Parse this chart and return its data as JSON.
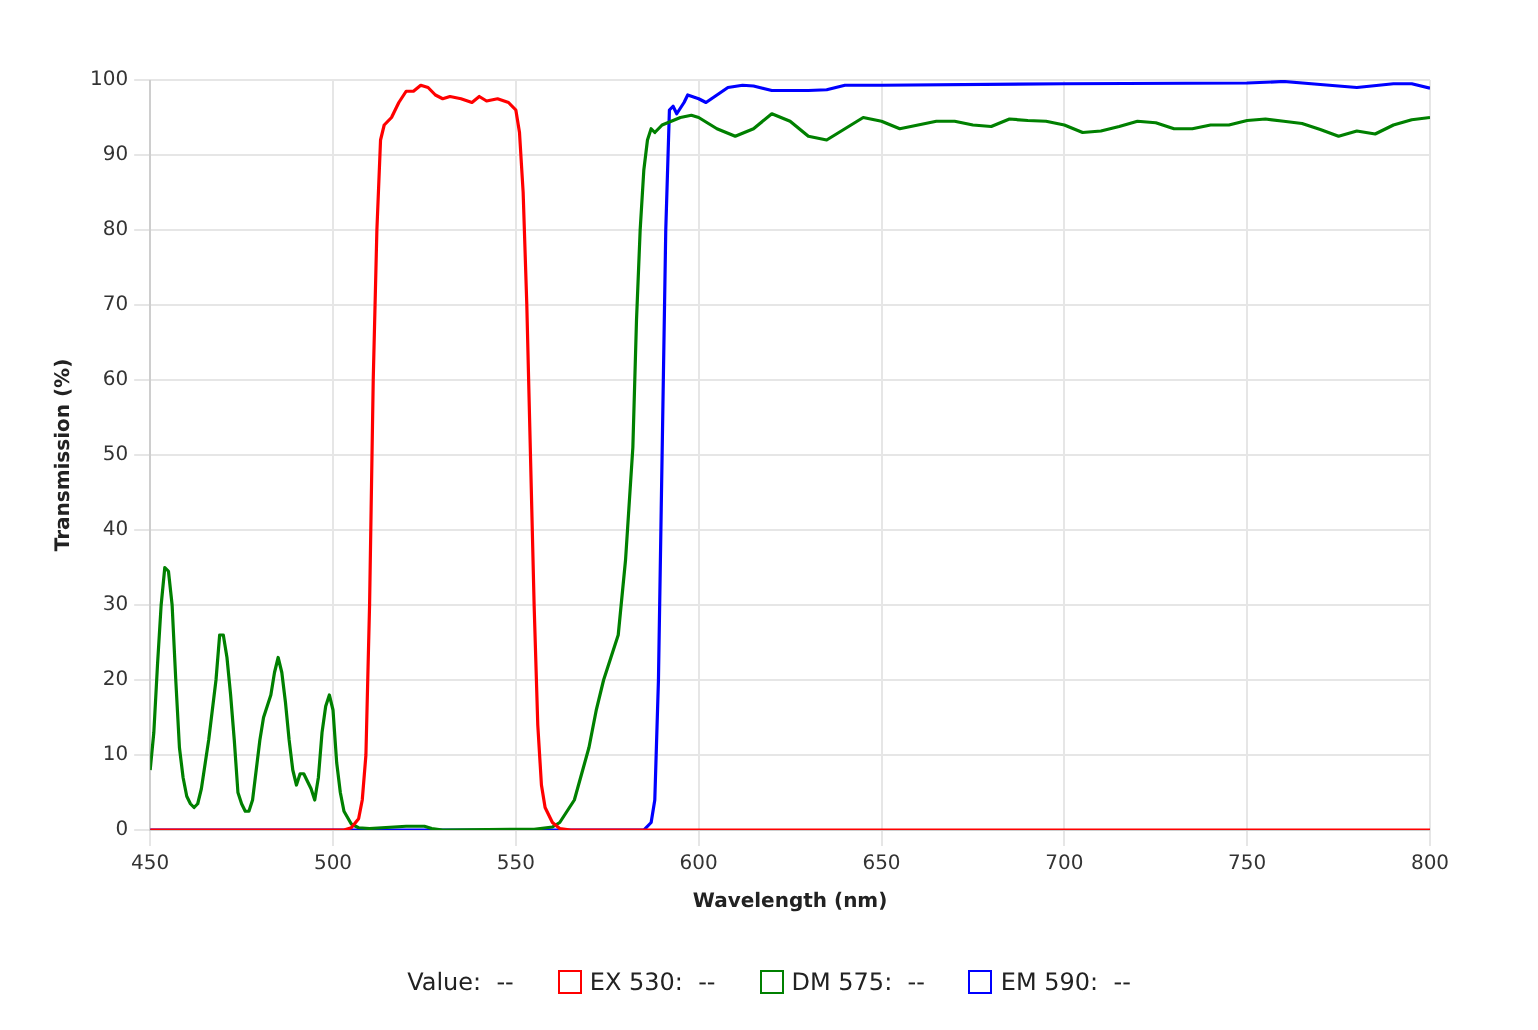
{
  "chart_data": {
    "type": "line",
    "xlabel": "Wavelength (nm)",
    "ylabel": "Transmission (%)",
    "xlim": [
      450,
      800
    ],
    "xticks": [
      450,
      500,
      550,
      600,
      650,
      700,
      750,
      800
    ],
    "ylim": [
      0,
      100
    ],
    "yticks": [
      0,
      10,
      20,
      30,
      40,
      50,
      60,
      70,
      80,
      90,
      100
    ],
    "grid": true,
    "legend": "bottom",
    "marker": "none",
    "line_style": "solid",
    "annotations": [
      "Value:  --"
    ],
    "series": [
      {
        "name": "EX 530:  --",
        "color": "#ff0000",
        "x": [
          450,
          503,
          505,
          507,
          508,
          509,
          510,
          511,
          512,
          513,
          514,
          516,
          518,
          520,
          522,
          524,
          526,
          528,
          530,
          532,
          535,
          538,
          540,
          542,
          545,
          548,
          550,
          551,
          552,
          553,
          554,
          555,
          556,
          557,
          558,
          560,
          562,
          565,
          800
        ],
        "values": [
          0,
          0,
          0.3,
          1.5,
          4,
          10,
          30,
          60,
          80,
          92,
          94,
          95,
          97,
          98.5,
          98.5,
          99.3,
          99,
          98,
          97.5,
          97.8,
          97.5,
          97,
          97.8,
          97.2,
          97.5,
          97,
          96,
          93,
          85,
          70,
          50,
          30,
          14,
          6,
          3,
          1,
          0.2,
          0,
          0
        ]
      },
      {
        "name": "DM 575:  --",
        "color": "#008000",
        "x": [
          450,
          451,
          452,
          453,
          454,
          455,
          456,
          457,
          458,
          459,
          460,
          461,
          462,
          463,
          464,
          466,
          468,
          469,
          470,
          471,
          472,
          473,
          474,
          475,
          476,
          477,
          478,
          479,
          480,
          481,
          483,
          484,
          485,
          486,
          487,
          488,
          489,
          490,
          491,
          492,
          493,
          494,
          495,
          496,
          497,
          498,
          499,
          500,
          501,
          502,
          503,
          505,
          507,
          510,
          520,
          525,
          527,
          530,
          555,
          560,
          562,
          564,
          566,
          568,
          570,
          572,
          574,
          576,
          578,
          580,
          582,
          583,
          584,
          585,
          586,
          587,
          588,
          590,
          595,
          598,
          600,
          605,
          610,
          615,
          620,
          625,
          630,
          635,
          640,
          645,
          650,
          655,
          660,
          665,
          670,
          675,
          680,
          685,
          690,
          695,
          700,
          705,
          710,
          715,
          720,
          725,
          730,
          735,
          740,
          745,
          750,
          755,
          760,
          765,
          770,
          775,
          780,
          785,
          790,
          795,
          800
        ],
        "values": [
          8,
          13,
          22,
          30,
          35,
          34.5,
          30,
          20,
          11,
          7,
          4.5,
          3.5,
          3,
          3.5,
          5.5,
          12,
          20,
          26,
          26,
          23,
          18,
          12,
          5,
          3.5,
          2.5,
          2.5,
          4,
          8,
          12,
          15,
          18,
          21,
          23,
          21,
          17,
          12,
          8,
          6,
          7.5,
          7.5,
          6.5,
          5.5,
          4,
          7,
          13,
          16.5,
          18,
          16,
          9,
          5,
          2.5,
          0.8,
          0.3,
          0.2,
          0.5,
          0.5,
          0.2,
          0,
          0.1,
          0.4,
          1,
          2.5,
          4,
          7.5,
          11,
          16,
          20,
          23,
          26,
          36,
          51,
          68,
          80,
          88,
          92,
          93.5,
          93,
          94,
          95,
          95.3,
          95,
          93.5,
          92.5,
          93.5,
          95.5,
          94.5,
          92.5,
          92,
          93.5,
          95,
          94.5,
          93.5,
          94,
          94.5,
          94.5,
          94,
          93.8,
          94.8,
          94.6,
          94.5,
          94,
          93,
          93.2,
          93.8,
          94.5,
          94.3,
          93.5,
          93.5,
          94,
          94,
          94.6,
          94.8,
          94.5,
          94.2,
          93.4,
          92.5,
          93.2,
          92.8,
          94,
          94.7,
          95
        ]
      },
      {
        "name": "EM 590:  --",
        "color": "#0000ff",
        "x": [
          450,
          585,
          587,
          588,
          589,
          590,
          591,
          592,
          593,
          594,
          596,
          597,
          600,
          602,
          605,
          608,
          612,
          615,
          620,
          630,
          635,
          640,
          650,
          700,
          750,
          760,
          770,
          780,
          790,
          795,
          800
        ],
        "values": [
          0,
          0,
          1,
          4,
          20,
          50,
          80,
          96,
          96.5,
          95.5,
          97,
          98,
          97.5,
          97,
          98,
          99,
          99.3,
          99.2,
          98.6,
          98.6,
          98.7,
          99.3,
          99.3,
          99.5,
          99.6,
          99.8,
          99.4,
          99,
          99.5,
          99.5,
          98.9
        ]
      }
    ]
  }
}
